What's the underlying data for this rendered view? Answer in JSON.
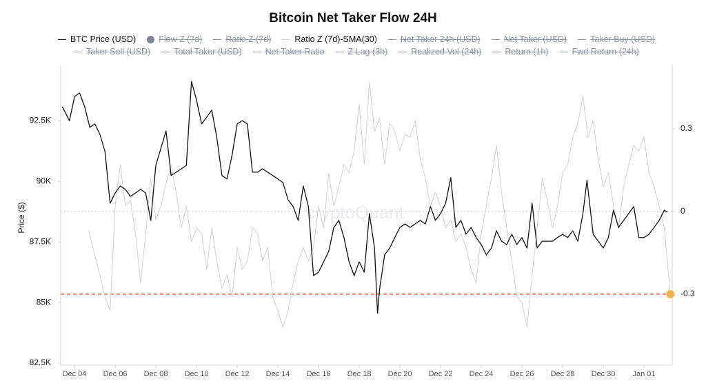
{
  "chart_data": {
    "type": "line",
    "title": "Bitcoin Net Taker Flow 24H",
    "ylabel": "Price ($)",
    "watermark": "cryptoQuant",
    "xlim": [
      -0.68,
      29.39
    ],
    "xticks": [
      {
        "value": 0,
        "label": "Dec 04"
      },
      {
        "value": 2,
        "label": "Dec 06"
      },
      {
        "value": 4,
        "label": "Dec 08"
      },
      {
        "value": 6,
        "label": "Dec 10"
      },
      {
        "value": 8,
        "label": "Dec 12"
      },
      {
        "value": 10,
        "label": "Dec 14"
      },
      {
        "value": 12,
        "label": "Dec 16"
      },
      {
        "value": 14,
        "label": "Dec 18"
      },
      {
        "value": 16,
        "label": "Dec 20"
      },
      {
        "value": 18,
        "label": "Dec 22"
      },
      {
        "value": 20,
        "label": "Dec 24"
      },
      {
        "value": 22,
        "label": "Dec 26"
      },
      {
        "value": 24,
        "label": "Dec 28"
      },
      {
        "value": 26,
        "label": "Dec 30"
      },
      {
        "value": 28,
        "label": "Jan 01"
      }
    ],
    "ylim": [
      82500,
      94500
    ],
    "yticks": [
      {
        "value": 82500,
        "label": "82.5K"
      },
      {
        "value": 85000,
        "label": "85K"
      },
      {
        "value": 87500,
        "label": "87.5K"
      },
      {
        "value": 90000,
        "label": "90K"
      },
      {
        "value": 92500,
        "label": "92.5K"
      }
    ],
    "y2lim": [
      -0.55,
      0.505
    ],
    "y2ticks": [
      -0.3,
      0,
      0.3
    ],
    "reference_lines": [
      {
        "value": -0.3,
        "axis": "y2",
        "color": "#e0463c",
        "style": "dashed"
      },
      {
        "value": 0,
        "axis": "y2",
        "color": "#c8c8c8",
        "style": "dotted"
      }
    ],
    "series": [
      {
        "name": "BTC Price (USD)",
        "color": "#111111",
        "visible": true,
        "axis": "y",
        "x": [
          -0.6,
          -0.25,
          0,
          0.25,
          0.5,
          0.75,
          1,
          1.25,
          1.5,
          1.75,
          2,
          2.25,
          2.5,
          2.75,
          3,
          3.25,
          3.5,
          3.75,
          4,
          4.25,
          4.5,
          4.75,
          5,
          5.25,
          5.5,
          5.75,
          6,
          6.25,
          6.5,
          6.75,
          7,
          7.25,
          7.5,
          7.75,
          8,
          8.25,
          8.5,
          8.75,
          9,
          9.25,
          9.5,
          9.75,
          10,
          10.25,
          10.5,
          10.75,
          11,
          11.25,
          11.5,
          11.75,
          12,
          12.25,
          12.5,
          12.75,
          13,
          13.25,
          13.5,
          13.75,
          14,
          14.25,
          14.5,
          14.75,
          14.9,
          15,
          15.25,
          15.5,
          15.75,
          16,
          16.25,
          16.5,
          16.75,
          17,
          17.25,
          17.5,
          17.75,
          18,
          18.25,
          18.5,
          18.75,
          19,
          19.25,
          19.5,
          19.75,
          20,
          20.25,
          20.5,
          20.75,
          21,
          21.25,
          21.5,
          21.75,
          22,
          22.25,
          22.5,
          22.75,
          23,
          23.25,
          23.5,
          23.75,
          24,
          24.25,
          24.5,
          24.75,
          25,
          25.2,
          25.5,
          25.75,
          26,
          26.25,
          26.5,
          26.75,
          27,
          27.25,
          27.5,
          27.75,
          28,
          28.25,
          28.5,
          28.75,
          29,
          29.15
        ],
        "values": [
          93080,
          92500,
          93500,
          93650,
          93080,
          92230,
          92370,
          91940,
          91230,
          89100,
          89520,
          89810,
          89670,
          89380,
          89520,
          89670,
          89520,
          88390,
          90660,
          91370,
          92080,
          90240,
          90380,
          90520,
          90660,
          94130,
          93360,
          92370,
          92650,
          92940,
          91800,
          90240,
          90100,
          91090,
          92370,
          92510,
          92370,
          90380,
          90380,
          90520,
          90380,
          90240,
          90100,
          89950,
          89240,
          88960,
          88390,
          89810,
          88960,
          86110,
          86250,
          86680,
          87110,
          88100,
          88390,
          87680,
          86680,
          86110,
          86680,
          86250,
          88670,
          87250,
          84550,
          85540,
          86970,
          87250,
          87680,
          88100,
          88240,
          88100,
          88240,
          88390,
          88240,
          88960,
          88390,
          88670,
          89100,
          90150,
          88100,
          88390,
          87820,
          88100,
          87680,
          87390,
          86970,
          87250,
          87960,
          87530,
          87390,
          87820,
          87390,
          87680,
          87250,
          89100,
          87250,
          87530,
          87530,
          87530,
          87680,
          87820,
          87680,
          87960,
          87530,
          88670,
          90040,
          87820,
          87530,
          87250,
          87680,
          88810,
          88100,
          88390,
          88670,
          88960,
          87680,
          87680,
          87820,
          88100,
          88390,
          88810,
          88730
        ]
      },
      {
        "name": "Flow Z (7d)",
        "color": "#7d849c",
        "visible": false,
        "marker": "dot"
      },
      {
        "name": "Ratio Z (7d)",
        "color": "#8d97aa",
        "visible": false
      },
      {
        "name": "Ratio Z (7d)-SMA(30)",
        "color": "#d2d2d2",
        "visible": true,
        "axis": "y2",
        "end_marker_color": "#f5b453",
        "x": [
          0.7,
          1,
          1.25,
          1.5,
          1.75,
          2,
          2.25,
          2.5,
          2.75,
          3,
          3.25,
          3.5,
          3.75,
          4,
          4.25,
          4.5,
          4.75,
          5,
          5.25,
          5.5,
          5.75,
          6,
          6.25,
          6.5,
          6.75,
          7,
          7.25,
          7.5,
          7.75,
          8,
          8.25,
          8.5,
          8.75,
          9,
          9.25,
          9.5,
          9.75,
          10,
          10.25,
          10.5,
          10.75,
          11,
          11.25,
          11.5,
          11.75,
          12,
          12.25,
          12.5,
          12.75,
          13,
          13.25,
          13.5,
          13.75,
          14,
          14.25,
          14.5,
          14.75,
          15,
          15.25,
          15.5,
          15.75,
          16,
          16.25,
          16.5,
          16.75,
          17,
          17.25,
          17.5,
          17.75,
          18,
          18.25,
          18.5,
          18.75,
          19,
          19.25,
          19.5,
          19.75,
          20,
          20.25,
          20.5,
          20.75,
          21,
          21.25,
          21.5,
          21.75,
          22,
          22.25,
          22.5,
          22.75,
          23,
          23.25,
          23.5,
          23.75,
          24,
          24.25,
          24.5,
          24.75,
          25,
          25.25,
          25.5,
          25.75,
          26,
          26.25,
          26.5,
          26.75,
          27,
          27.25,
          27.5,
          27.75,
          28,
          28.25,
          28.5,
          28.75,
          29,
          29.15,
          29.3
        ],
        "values": [
          -0.07,
          -0.16,
          -0.23,
          -0.31,
          -0.36,
          0.02,
          0.17,
          0.02,
          0.04,
          -0.08,
          -0.26,
          -0.08,
          0.12,
          -0.03,
          0.02,
          0.1,
          0.17,
          0.07,
          -0.06,
          0.02,
          -0.11,
          -0.06,
          -0.08,
          -0.21,
          -0.06,
          -0.18,
          -0.28,
          -0.23,
          -0.31,
          -0.13,
          -0.21,
          -0.18,
          -0.06,
          -0.08,
          -0.18,
          -0.13,
          -0.31,
          -0.36,
          -0.42,
          -0.36,
          -0.26,
          -0.18,
          -0.13,
          -0.18,
          -0.13,
          0.02,
          -0.06,
          0.14,
          0.02,
          0.09,
          0.17,
          0.14,
          0.22,
          0.39,
          0.17,
          0.47,
          0.29,
          0.34,
          0.17,
          0.32,
          0.29,
          0.22,
          0.28,
          0.27,
          0.33,
          0.19,
          0.12,
          0.02,
          0.07,
          0.02,
          -0.06,
          -0.03,
          -0.11,
          -0.08,
          -0.13,
          -0.21,
          -0.26,
          -0.08,
          0.02,
          0.12,
          0.24,
          0.07,
          -0.06,
          -0.18,
          -0.31,
          -0.33,
          -0.42,
          -0.23,
          -0.06,
          0.12,
          0.04,
          -0.06,
          0.02,
          0.14,
          0.17,
          0.27,
          0.32,
          0.42,
          0.27,
          0.33,
          0.19,
          0.09,
          0.14,
          0.02,
          -0.06,
          0.09,
          0.17,
          0.24,
          0.22,
          0.27,
          0.14,
          0.09,
          0.02,
          -0.06,
          -0.18,
          -0.3
        ]
      },
      {
        "name": "Net Taker 24h (USD)",
        "color": "#8d97aa",
        "visible": false
      },
      {
        "name": "Net Taker (USD)",
        "color": "#8d97aa",
        "visible": false
      },
      {
        "name": "Taker Buy (USD)",
        "color": "#8d97aa",
        "visible": false
      },
      {
        "name": "Taker Sell (USD)",
        "color": "#8d97aa",
        "visible": false
      },
      {
        "name": "Total Taker (USD)",
        "color": "#8d97aa",
        "visible": false
      },
      {
        "name": "Net Taker Ratio",
        "color": "#8d97aa",
        "visible": false
      },
      {
        "name": "Z Lag (3h)",
        "color": "#8d97aa",
        "visible": false
      },
      {
        "name": "Realized Vol (24h)",
        "color": "#8d97aa",
        "visible": false
      },
      {
        "name": "Return (1h)",
        "color": "#8d97aa",
        "visible": false
      },
      {
        "name": "Fwd Return (24h)",
        "color": "#8d97aa",
        "visible": false
      }
    ]
  }
}
